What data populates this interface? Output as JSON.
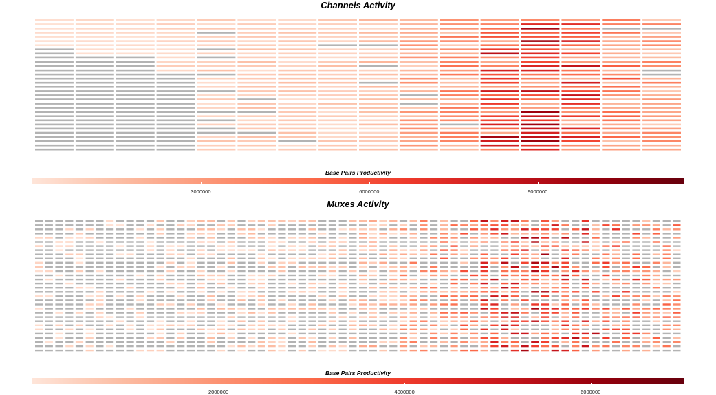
{
  "chart_data": [
    {
      "type": "heatmap",
      "title": "Channels Activity",
      "legend_title": "Base Pairs Productivity",
      "color_scale": [
        "#fee5d9",
        "#fcbba1",
        "#fc9272",
        "#fb6a4a",
        "#ef3b2c",
        "#cb181d",
        "#99000d",
        "#67000d"
      ],
      "color_range": [
        0,
        11600000
      ],
      "zero_color": "#b3b3b3",
      "legend_ticks": [
        {
          "value": 3000000,
          "label": "3000000"
        },
        {
          "value": 6000000,
          "label": "6000000"
        },
        {
          "value": 9000000,
          "label": "9000000"
        }
      ],
      "columns": 16,
      "rows": 32,
      "zero_rows_per_column": [
        25,
        23,
        23,
        19,
        9,
        3,
        1,
        1,
        3,
        2,
        1,
        0,
        0,
        0,
        1,
        3
      ],
      "column_level": [
        0.02,
        0.03,
        0.03,
        0.05,
        0.08,
        0.08,
        0.08,
        0.08,
        0.1,
        0.18,
        0.25,
        0.5,
        0.52,
        0.45,
        0.32,
        0.22
      ]
    },
    {
      "type": "heatmap",
      "title": "Muxes Activity",
      "legend_title": "Base Pairs Productivity",
      "color_scale": [
        "#fee5d9",
        "#fcbba1",
        "#fc9272",
        "#fb6a4a",
        "#ef3b2c",
        "#cb181d",
        "#99000d",
        "#67000d"
      ],
      "color_range": [
        0,
        7000000
      ],
      "zero_color": "#b3b3b3",
      "legend_ticks": [
        {
          "value": 2000000,
          "label": "2000000"
        },
        {
          "value": 4000000,
          "label": "4000000"
        },
        {
          "value": 6000000,
          "label": "6000000"
        }
      ],
      "columns": 64,
      "rows": 32,
      "column_groups": 16,
      "zero_probability_by_group": [
        0.8,
        0.75,
        0.75,
        0.62,
        0.55,
        0.55,
        0.6,
        0.55,
        0.5,
        0.45,
        0.4,
        0.35,
        0.3,
        0.35,
        0.4,
        0.45
      ],
      "level_by_group": [
        0.05,
        0.05,
        0.05,
        0.06,
        0.08,
        0.08,
        0.08,
        0.08,
        0.12,
        0.2,
        0.28,
        0.42,
        0.45,
        0.42,
        0.34,
        0.25
      ]
    }
  ]
}
